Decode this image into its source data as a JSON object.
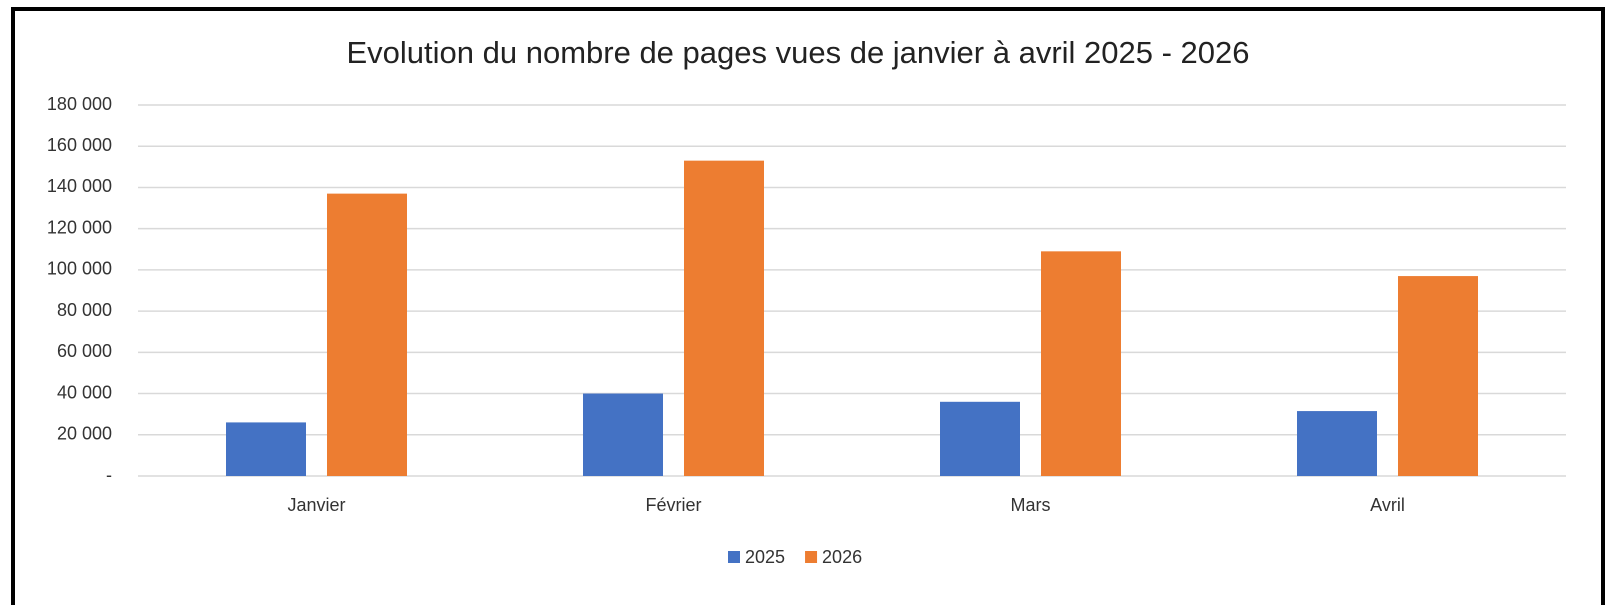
{
  "chart_data": {
    "type": "bar",
    "title": "Evolution du nombre de pages vues de janvier à avril 2025 - 2026",
    "categories": [
      "Janvier",
      "Février",
      "Mars",
      "Avril"
    ],
    "series": [
      {
        "name": "2025",
        "color": "#4472c4",
        "values": [
          26000,
          40000,
          36000,
          31500
        ]
      },
      {
        "name": "2026",
        "color": "#ed7d31",
        "values": [
          137000,
          153000,
          109000,
          97000
        ]
      }
    ],
    "ylim": [
      0,
      180000
    ],
    "yticks": [
      {
        "value": 0,
        "label": "-"
      },
      {
        "value": 20000,
        "label": "20 000"
      },
      {
        "value": 40000,
        "label": "40 000"
      },
      {
        "value": 60000,
        "label": "60 000"
      },
      {
        "value": 80000,
        "label": "80 000"
      },
      {
        "value": 100000,
        "label": "100 000"
      },
      {
        "value": 120000,
        "label": "120 000"
      },
      {
        "value": 140000,
        "label": "140 000"
      },
      {
        "value": 160000,
        "label": "160 000"
      },
      {
        "value": 180000,
        "label": "180 000"
      }
    ],
    "grid": true,
    "legend": "bottom"
  }
}
